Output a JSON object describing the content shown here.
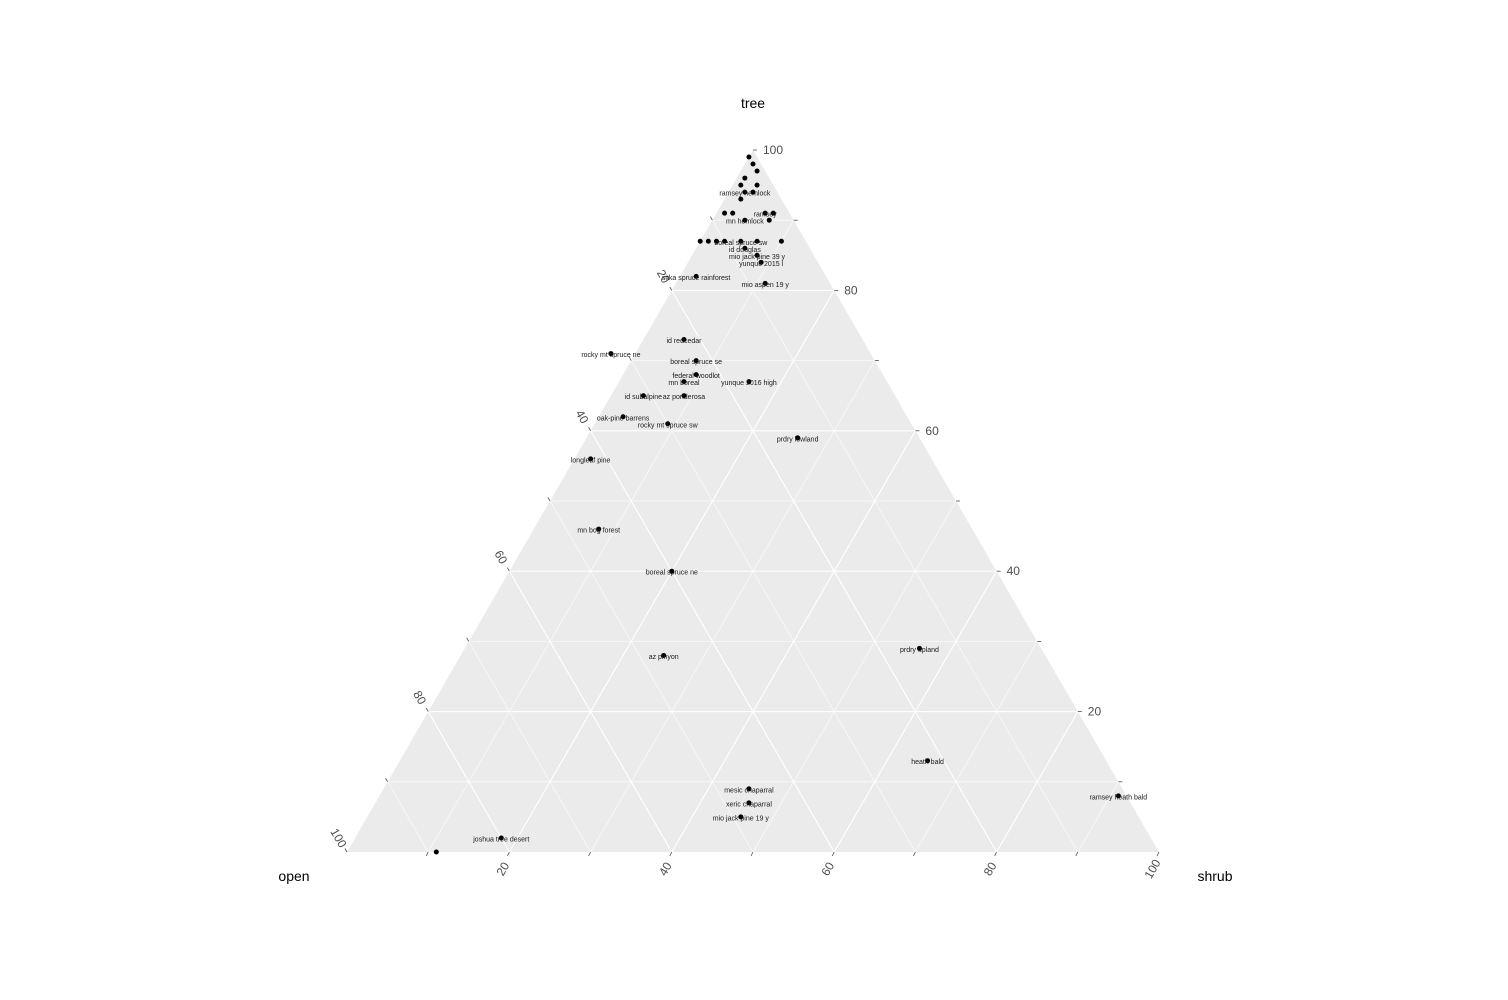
{
  "chart_data": {
    "type": "scatter",
    "subtype": "ternary",
    "axes": {
      "top": "tree",
      "left": "open",
      "right": "shrub"
    },
    "ticks": [
      20,
      40,
      60,
      80,
      100
    ],
    "grid": true,
    "point_color": "#000000",
    "panel_color": "#ebebeb",
    "grid_color": "#ffffff",
    "points": [
      {
        "label": "joshua tree desert",
        "tree": 2,
        "open": 80,
        "shrub": 18
      },
      {
        "label": "",
        "tree": 0,
        "open": 89,
        "shrub": 11
      },
      {
        "label": "ramsey heath bald",
        "tree": 8,
        "open": 1,
        "shrub": 91
      },
      {
        "label": "heath bald",
        "tree": 13,
        "open": 22,
        "shrub": 65
      },
      {
        "label": "mesic chaparral",
        "tree": 9,
        "open": 46,
        "shrub": 45
      },
      {
        "label": "xeric chaparral",
        "tree": 7,
        "open": 47,
        "shrub": 46
      },
      {
        "label": "mio jack pine 19 y",
        "tree": 5,
        "open": 49,
        "shrub": 46
      },
      {
        "label": "az pinyon",
        "tree": 28,
        "open": 47,
        "shrub": 25
      },
      {
        "label": "prdry upland",
        "tree": 29,
        "open": 15,
        "shrub": 56
      },
      {
        "label": "boreal spruce ne",
        "tree": 40,
        "open": 40,
        "shrub": 20
      },
      {
        "label": "mn bog forest",
        "tree": 46,
        "open": 46,
        "shrub": 8
      },
      {
        "label": "longleaf pine",
        "tree": 56,
        "open": 42,
        "shrub": 2
      },
      {
        "label": "prdry lowland",
        "tree": 59,
        "open": 15,
        "shrub": 26
      },
      {
        "label": "oak-pine barrens",
        "tree": 62,
        "open": 35,
        "shrub": 3
      },
      {
        "label": "rocky mt spruce sw",
        "tree": 61,
        "open": 30,
        "shrub": 9
      },
      {
        "label": "id subalpine",
        "tree": 65,
        "open": 31,
        "shrub": 4
      },
      {
        "label": "az ponderosa",
        "tree": 65,
        "open": 26,
        "shrub": 9
      },
      {
        "label": "mn boreal",
        "tree": 67,
        "open": 25,
        "shrub": 8
      },
      {
        "label": "federal woodlot",
        "tree": 68,
        "open": 23,
        "shrub": 9
      },
      {
        "label": "boreal spruce se",
        "tree": 70,
        "open": 22,
        "shrub": 8
      },
      {
        "label": "yunque 2016 high",
        "tree": 67,
        "open": 17,
        "shrub": 16
      },
      {
        "label": "rocky mt spruce ne",
        "tree": 71,
        "open": 32,
        "shrub": -3
      },
      {
        "label": "id redcedar",
        "tree": 73,
        "open": 22,
        "shrub": 5
      },
      {
        "label": "sitka spruce rainforest",
        "tree": 82,
        "open": 16,
        "shrub": 2
      },
      {
        "label": "mio aspen 19 y",
        "tree": 81,
        "open": 8,
        "shrub": 11
      },
      {
        "label": "yunque 2015 l",
        "tree": 84,
        "open": 7,
        "shrub": 9
      },
      {
        "label": "mio jack pine 39 y",
        "tree": 85,
        "open": 7,
        "shrub": 8
      },
      {
        "label": "id douglas",
        "tree": 86,
        "open": 8,
        "shrub": 6
      },
      {
        "label": "boreal spruce sw",
        "tree": 87,
        "open": 8,
        "shrub": 5
      },
      {
        "label": "",
        "tree": 87,
        "open": 6,
        "shrub": 7
      },
      {
        "label": "",
        "tree": 87,
        "open": 3,
        "shrub": 10
      },
      {
        "label": "",
        "tree": 87,
        "open": 10,
        "shrub": 3
      },
      {
        "label": "",
        "tree": 87,
        "open": 12,
        "shrub": 1
      },
      {
        "label": "",
        "tree": 87,
        "open": 13,
        "shrub": 0
      },
      {
        "label": "",
        "tree": 87,
        "open": 11,
        "shrub": 2
      },
      {
        "label": "mn hemlock",
        "tree": 90,
        "open": 6,
        "shrub": 4
      },
      {
        "label": "",
        "tree": 90,
        "open": 3,
        "shrub": 7
      },
      {
        "label": "ramsey",
        "tree": 91,
        "open": 3,
        "shrub": 6
      },
      {
        "label": "",
        "tree": 91,
        "open": 8,
        "shrub": 1
      },
      {
        "label": "",
        "tree": 91,
        "open": 7,
        "shrub": 2
      },
      {
        "label": "",
        "tree": 91,
        "open": 2,
        "shrub": 7
      },
      {
        "label": "",
        "tree": 93,
        "open": 5,
        "shrub": 2
      },
      {
        "label": "ramsey hemlock",
        "tree": 94,
        "open": 4,
        "shrub": 2
      },
      {
        "label": "",
        "tree": 94,
        "open": 3,
        "shrub": 3
      },
      {
        "label": "",
        "tree": 95,
        "open": 4,
        "shrub": 1
      },
      {
        "label": "",
        "tree": 95,
        "open": 2,
        "shrub": 3
      },
      {
        "label": "",
        "tree": 96,
        "open": 3,
        "shrub": 1
      },
      {
        "label": "",
        "tree": 97,
        "open": 1,
        "shrub": 2
      },
      {
        "label": "",
        "tree": 98,
        "open": 1,
        "shrub": 1
      },
      {
        "label": "",
        "tree": 99,
        "open": 1,
        "shrub": 0
      }
    ]
  }
}
